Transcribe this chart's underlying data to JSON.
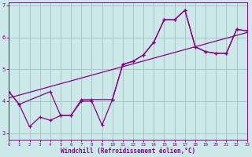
{
  "xlabel": "Windchill (Refroidissement éolien,°C)",
  "bg_color": "#cce8e8",
  "line_color": "#880088",
  "grid_color": "#99bbbb",
  "x_ticks": [
    0,
    1,
    2,
    3,
    4,
    5,
    6,
    7,
    8,
    9,
    10,
    11,
    12,
    13,
    14,
    15,
    16,
    17,
    18,
    19,
    20,
    21,
    22,
    23
  ],
  "y_ticks": [
    3,
    4,
    5,
    6,
    7
  ],
  "xlim": [
    0,
    23
  ],
  "ylim": [
    2.8,
    7.1
  ],
  "line1_x": [
    0,
    1,
    2,
    3,
    4,
    5,
    6,
    7,
    8,
    9,
    10,
    11,
    12,
    13,
    14,
    15,
    16,
    17,
    18,
    19,
    20,
    21,
    22,
    23
  ],
  "line1_y": [
    4.3,
    3.9,
    3.2,
    3.5,
    3.4,
    3.55,
    3.55,
    4.0,
    4.0,
    3.25,
    4.05,
    5.15,
    5.25,
    5.45,
    5.85,
    6.55,
    6.55,
    6.85,
    5.7,
    5.55,
    5.5,
    5.5,
    6.25,
    6.2
  ],
  "line2_x": [
    0,
    1,
    4,
    5,
    6,
    7,
    8,
    10,
    11,
    12,
    13,
    14,
    15,
    16,
    17,
    18,
    19,
    20,
    21,
    22,
    23
  ],
  "line2_y": [
    4.3,
    3.9,
    4.3,
    3.55,
    3.55,
    4.05,
    4.05,
    4.05,
    5.15,
    5.25,
    5.45,
    5.85,
    6.55,
    6.55,
    6.85,
    5.7,
    5.55,
    5.5,
    5.5,
    6.25,
    6.2
  ],
  "line3_x": [
    0,
    23
  ],
  "line3_y": [
    4.1,
    6.15
  ]
}
